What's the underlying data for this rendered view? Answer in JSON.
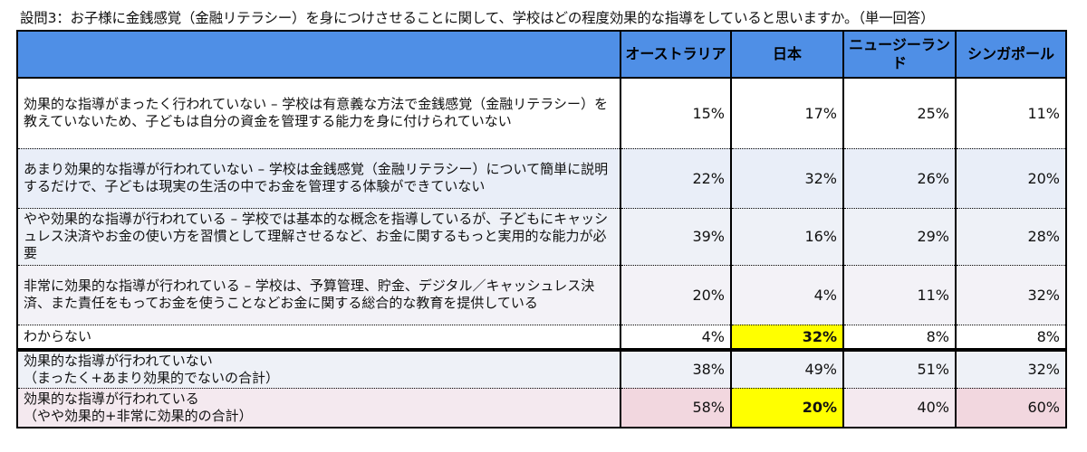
{
  "question": "設問3：お子様に金銭感覚（金融リテラシー）を身につけさせることに関して、学校はどの程度効果的な指導をしていると思いますか。（単一回答）",
  "columns": [
    "オーストラリア",
    "日本",
    "ニュージーランド",
    "シンガポール"
  ],
  "rows": [
    {
      "label": "効果的な指導がまったく行われていない – 学校は有意義な方法で金銭感覚（金融リテラシー）を教えていないため、子どもは自分の資金を管理する能力を身に付けられていない",
      "values": [
        "15%",
        "17%",
        "25%",
        "11%"
      ]
    },
    {
      "label": "あまり効果的な指導が行われていない – 学校は金銭感覚（金融リテラシー）について簡単に説明するだけで、子どもは現実の生活の中でお金を管理する体験ができていない",
      "values": [
        "22%",
        "32%",
        "26%",
        "20%"
      ]
    },
    {
      "label": "やや効果的な指導が行われている – 学校では基本的な概念を指導しているが、子どもにキャッシュレス決済やお金の使い方を習慣として理解させるなど、お金に関するもっと実用的な能力が必要",
      "values": [
        "39%",
        "16%",
        "29%",
        "28%"
      ]
    },
    {
      "label": "非常に効果的な指導が行われている – 学校は、予算管理、貯金、デジタル／キャッシュレス決済、また責任をもってお金を使うことなどお金に関する総合的な教育を提供している",
      "values": [
        "20%",
        "4%",
        "11%",
        "32%"
      ]
    },
    {
      "label": "わからない",
      "values": [
        "4%",
        "32%",
        "8%",
        "8%"
      ]
    },
    {
      "label": "効果的な指導が行われていない\n（まったく+あまり効果的でないの合計）",
      "values": [
        "38%",
        "49%",
        "51%",
        "32%"
      ]
    },
    {
      "label": "効果的な指導が行われている\n（やや効果的+非常に効果的の合計）",
      "values": [
        "58%",
        "20%",
        "40%",
        "60%"
      ]
    }
  ],
  "colors": {
    "header": "#4f8fe6",
    "highlight": "#ffff00",
    "pink": "#f2d7df"
  }
}
